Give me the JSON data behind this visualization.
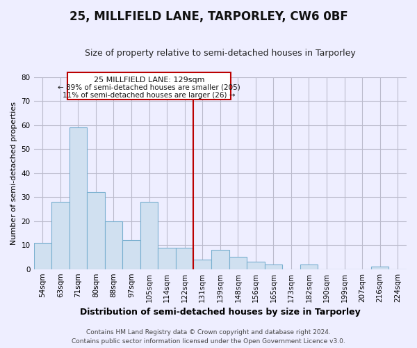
{
  "title": "25, MILLFIELD LANE, TARPORLEY, CW6 0BF",
  "subtitle": "Size of property relative to semi-detached houses in Tarporley",
  "xlabel": "Distribution of semi-detached houses by size in Tarporley",
  "ylabel": "Number of semi-detached properties",
  "bin_labels": [
    "54sqm",
    "63sqm",
    "71sqm",
    "80sqm",
    "88sqm",
    "97sqm",
    "105sqm",
    "114sqm",
    "122sqm",
    "131sqm",
    "139sqm",
    "148sqm",
    "156sqm",
    "165sqm",
    "173sqm",
    "182sqm",
    "190sqm",
    "199sqm",
    "207sqm",
    "216sqm",
    "224sqm"
  ],
  "bar_heights": [
    11,
    28,
    59,
    32,
    20,
    12,
    28,
    9,
    9,
    4,
    8,
    5,
    3,
    2,
    0,
    2,
    0,
    0,
    0,
    1,
    0
  ],
  "bar_color": "#d0e0f0",
  "bar_edge_color": "#7ab0d0",
  "highlight_line_color": "#bb0000",
  "ylim": [
    0,
    80
  ],
  "yticks": [
    0,
    10,
    20,
    30,
    40,
    50,
    60,
    70,
    80
  ],
  "annotation_title": "25 MILLFIELD LANE: 129sqm",
  "annotation_line1": "← 89% of semi-detached houses are smaller (205)",
  "annotation_line2": "11% of semi-detached houses are larger (26) →",
  "annotation_box_color": "#ffffff",
  "annotation_box_edge": "#bb0000",
  "footer_line1": "Contains HM Land Registry data © Crown copyright and database right 2024.",
  "footer_line2": "Contains public sector information licensed under the Open Government Licence v3.0.",
  "background_color": "#eeeeff",
  "grid_color": "#bbbbcc",
  "title_fontsize": 12,
  "subtitle_fontsize": 9,
  "xlabel_fontsize": 9,
  "ylabel_fontsize": 8,
  "tick_fontsize": 7.5,
  "footer_fontsize": 6.5
}
